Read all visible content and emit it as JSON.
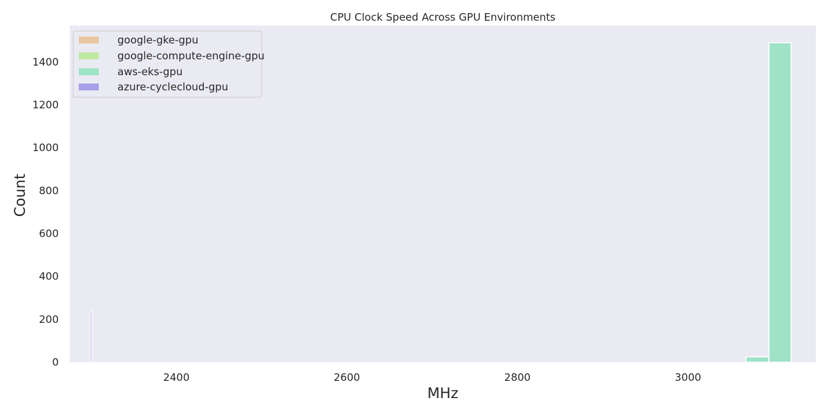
{
  "chart_data": {
    "type": "bar",
    "title": "CPU Clock Speed Across GPU Environments",
    "xlabel": "MHz",
    "ylabel": "Count",
    "xlim": [
      2275,
      3150
    ],
    "ylim": [
      0,
      1570
    ],
    "xticks": [
      2400,
      2600,
      2800,
      3000
    ],
    "yticks": [
      0,
      200,
      400,
      600,
      800,
      1000,
      1200,
      1400
    ],
    "grid": false,
    "legend_position": "top-left",
    "background": "#eaeaf2",
    "series": [
      {
        "name": "google-gke-gpu",
        "color": "#e8c7a0",
        "bins": []
      },
      {
        "name": "google-compute-engine-gpu",
        "color": "#bfe8a0",
        "bins": []
      },
      {
        "name": "aws-eks-gpu",
        "color": "#9fe3c7",
        "bins": [
          {
            "x0": 3068,
            "x1": 3095,
            "count": 25
          },
          {
            "x0": 3095,
            "x1": 3121,
            "count": 1490
          }
        ]
      },
      {
        "name": "azure-cyclecloud-gpu",
        "color": "#a8a0e8",
        "bins": [
          {
            "x0": 2299,
            "x1": 2301,
            "count": 240
          }
        ]
      }
    ]
  }
}
